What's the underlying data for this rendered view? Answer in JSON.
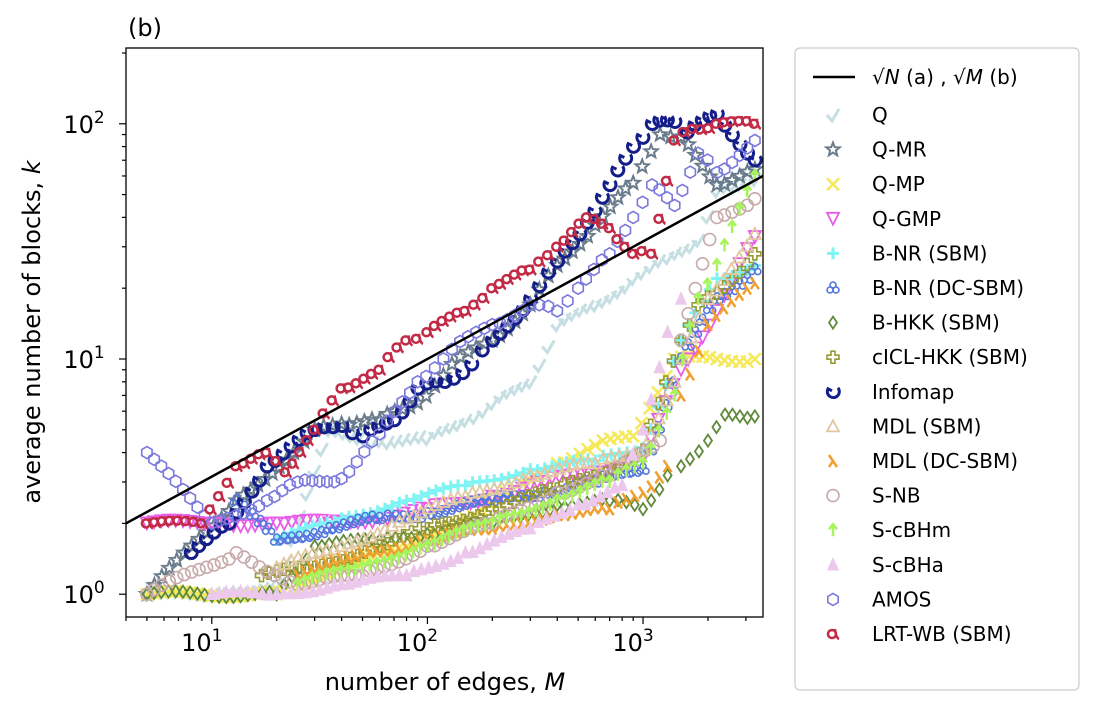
{
  "chart_data": {
    "type": "scatter",
    "panel_label": "(b)",
    "xlabel": "number of edges, ",
    "xlabel_var": "M",
    "ylabel": "average number of blocks, ",
    "ylabel_var": "k",
    "x_scale": "log",
    "y_scale": "log",
    "xlim": [
      4,
      3600
    ],
    "ylim": [
      0.8,
      210
    ],
    "x_ticks": [
      {
        "value": 10,
        "base": "10",
        "exp": "1"
      },
      {
        "value": 100,
        "base": "10",
        "exp": "2"
      },
      {
        "value": 1000,
        "base": "10",
        "exp": "3"
      }
    ],
    "y_ticks": [
      {
        "value": 1,
        "base": "10",
        "exp": "0"
      },
      {
        "value": 10,
        "base": "10",
        "exp": "1"
      },
      {
        "value": 100,
        "base": "10",
        "exp": "2"
      }
    ],
    "grid": false,
    "legend_position": "outside-right",
    "reference_line": {
      "label_part1": "√N",
      "label_part2": " (a) , ",
      "label_part3": "√M",
      "label_part4": " (b)",
      "x": [
        4,
        3600
      ],
      "y": [
        2.0,
        60
      ],
      "color": "#000000"
    },
    "series": [
      {
        "name": "Q",
        "color": "#c5dfe3",
        "marker": "check",
        "points": [
          [
            5,
            1
          ],
          [
            10,
            1
          ],
          [
            20,
            1.1
          ],
          [
            35,
            5
          ],
          [
            60,
            4.5
          ],
          [
            100,
            4.6
          ],
          [
            150,
            5.5
          ],
          [
            200,
            6.5
          ],
          [
            300,
            8
          ],
          [
            400,
            14
          ],
          [
            600,
            17
          ],
          [
            900,
            22
          ],
          [
            1300,
            27
          ],
          [
            1800,
            32
          ],
          [
            2200,
            52
          ],
          [
            3300,
            58
          ]
        ]
      },
      {
        "name": "Q-MR",
        "color": "#6a7c8c",
        "marker": "star",
        "points": [
          [
            5,
            1
          ],
          [
            13,
            2.5
          ],
          [
            24,
            4
          ],
          [
            30,
            5
          ],
          [
            40,
            5.3
          ],
          [
            60,
            5.5
          ],
          [
            90,
            6.5
          ],
          [
            130,
            9.5
          ],
          [
            200,
            12
          ],
          [
            300,
            17
          ],
          [
            400,
            25
          ],
          [
            600,
            37
          ],
          [
            900,
            56
          ],
          [
            1200,
            90
          ],
          [
            1500,
            88
          ],
          [
            2200,
            55
          ],
          [
            3300,
            64
          ]
        ]
      },
      {
        "name": "Q-MP",
        "color": "#f5e95a",
        "marker": "x",
        "points": [
          [
            5,
            1
          ],
          [
            20,
            1
          ],
          [
            40,
            1.3
          ],
          [
            80,
            1.6
          ],
          [
            150,
            2.1
          ],
          [
            250,
            2.8
          ],
          [
            400,
            3.6
          ],
          [
            600,
            4.3
          ],
          [
            900,
            4.7
          ],
          [
            1400,
            10
          ],
          [
            2200,
            10
          ],
          [
            3300,
            10
          ]
        ]
      },
      {
        "name": "Q-GMP",
        "color": "#e85ce8",
        "marker": "triangle-down",
        "points": [
          [
            5,
            2
          ],
          [
            10,
            2
          ],
          [
            20,
            2
          ],
          [
            35,
            2
          ],
          [
            60,
            2.1
          ],
          [
            100,
            2.3
          ],
          [
            200,
            2.6
          ],
          [
            350,
            3.0
          ],
          [
            600,
            3.3
          ],
          [
            1000,
            3.8
          ],
          [
            1500,
            9
          ],
          [
            2200,
            16
          ],
          [
            3300,
            33
          ]
        ]
      },
      {
        "name": "B-NR (SBM)",
        "color": "#7ff4f4",
        "marker": "plus",
        "points": [
          [
            20,
            1.7
          ],
          [
            40,
            2.1
          ],
          [
            80,
            2.5
          ],
          [
            150,
            2.9
          ],
          [
            300,
            3.4
          ],
          [
            600,
            3.7
          ],
          [
            1000,
            4.2
          ],
          [
            1500,
            12
          ],
          [
            2200,
            22
          ],
          [
            3300,
            25
          ]
        ]
      },
      {
        "name": "B-NR (DC-SBM)",
        "color": "#5577dd",
        "marker": "trefoil",
        "points": [
          [
            13,
            2.5
          ],
          [
            20,
            1.7
          ],
          [
            35,
            1.9
          ],
          [
            60,
            2.1
          ],
          [
            100,
            2.2
          ],
          [
            200,
            2.5
          ],
          [
            350,
            2.7
          ],
          [
            600,
            3.0
          ],
          [
            1000,
            3.4
          ],
          [
            1500,
            10
          ],
          [
            2200,
            18
          ],
          [
            3300,
            24
          ]
        ]
      },
      {
        "name": "B-HKK (SBM)",
        "color": "#5f8a3a",
        "marker": "diamond",
        "points": [
          [
            5,
            1
          ],
          [
            20,
            1
          ],
          [
            30,
            1.6
          ],
          [
            60,
            1.7
          ],
          [
            100,
            1.8
          ],
          [
            200,
            2.0
          ],
          [
            400,
            2.4
          ],
          [
            700,
            2.5
          ],
          [
            1000,
            2.3
          ],
          [
            1300,
            3.2
          ],
          [
            1500,
            3.5
          ],
          [
            2000,
            4.5
          ],
          [
            2400,
            5.8
          ],
          [
            3300,
            5.7
          ]
        ]
      },
      {
        "name": "cICL-HKK (SBM)",
        "color": "#999933",
        "marker": "plus-open",
        "points": [
          [
            17,
            1.2
          ],
          [
            30,
            1.3
          ],
          [
            60,
            1.6
          ],
          [
            100,
            1.9
          ],
          [
            200,
            2.3
          ],
          [
            400,
            2.8
          ],
          [
            700,
            3.4
          ],
          [
            1000,
            4.1
          ],
          [
            1500,
            12
          ],
          [
            1800,
            17
          ],
          [
            2200,
            19
          ],
          [
            3300,
            28
          ]
        ]
      },
      {
        "name": "Infomap",
        "color": "#141e8a",
        "marker": "spiral",
        "points": [
          [
            8,
            1.5
          ],
          [
            12,
            2.0
          ],
          [
            18,
            3.5
          ],
          [
            30,
            5
          ],
          [
            40,
            5.2
          ],
          [
            50,
            4.7
          ],
          [
            70,
            5.5
          ],
          [
            90,
            7.5
          ],
          [
            120,
            8.0
          ],
          [
            160,
            9.5
          ],
          [
            200,
            12
          ],
          [
            300,
            18
          ],
          [
            400,
            26
          ],
          [
            550,
            38
          ],
          [
            700,
            55
          ],
          [
            900,
            80
          ],
          [
            1100,
            100
          ],
          [
            1400,
            102
          ],
          [
            1600,
            92
          ],
          [
            2200,
            110
          ],
          [
            3300,
            70
          ]
        ]
      },
      {
        "name": "MDL (SBM)",
        "color": "#e0c8a0",
        "marker": "triangle-open",
        "points": [
          [
            20,
            1.3
          ],
          [
            40,
            1.6
          ],
          [
            80,
            2.1
          ],
          [
            150,
            2.6
          ],
          [
            300,
            3.2
          ],
          [
            600,
            3.6
          ],
          [
            1000,
            4.1
          ],
          [
            1400,
            8
          ],
          [
            2000,
            18
          ],
          [
            3300,
            34
          ]
        ]
      },
      {
        "name": "MDL (DC-SBM)",
        "color": "#f0a030",
        "marker": "lambda",
        "points": [
          [
            25,
            1.2
          ],
          [
            50,
            1.5
          ],
          [
            100,
            1.7
          ],
          [
            200,
            1.9
          ],
          [
            400,
            2.2
          ],
          [
            700,
            2.3
          ],
          [
            1000,
            2.7
          ],
          [
            1300,
            3.5
          ],
          [
            1500,
            7
          ],
          [
            2000,
            14
          ],
          [
            3300,
            21
          ]
        ]
      },
      {
        "name": "S-NB",
        "color": "#c8aaaa",
        "marker": "circle-open",
        "points": [
          [
            5,
            1
          ],
          [
            13,
            1.5
          ],
          [
            25,
            1.1
          ],
          [
            50,
            1.2
          ],
          [
            100,
            1.6
          ],
          [
            200,
            2.0
          ],
          [
            400,
            2.7
          ],
          [
            700,
            3.2
          ],
          [
            1200,
            4.5
          ],
          [
            1500,
            12
          ],
          [
            2200,
            40
          ],
          [
            3300,
            48
          ]
        ]
      },
      {
        "name": "S-cBHm",
        "color": "#a6f55a",
        "marker": "arrow",
        "points": [
          [
            25,
            1.1
          ],
          [
            50,
            1.3
          ],
          [
            100,
            1.6
          ],
          [
            200,
            2.0
          ],
          [
            400,
            2.5
          ],
          [
            700,
            3.0
          ],
          [
            1000,
            3.6
          ],
          [
            1400,
            7
          ],
          [
            1800,
            18
          ],
          [
            2200,
            25
          ],
          [
            3300,
            60
          ]
        ]
      },
      {
        "name": "S-cBHa",
        "color": "#ecc8ec",
        "marker": "triangle-solid",
        "points": [
          [
            10,
            1
          ],
          [
            20,
            1
          ],
          [
            40,
            1.1
          ],
          [
            80,
            1.2
          ],
          [
            150,
            1.5
          ],
          [
            300,
            1.9
          ],
          [
            500,
            2.4
          ],
          [
            800,
            2.9
          ],
          [
            1000,
            5
          ],
          [
            1300,
            13
          ],
          [
            1500,
            18
          ]
        ]
      },
      {
        "name": "AMOS",
        "color": "#7a78dc",
        "marker": "hexagon",
        "points": [
          [
            5,
            4
          ],
          [
            10,
            2
          ],
          [
            18,
            2.5
          ],
          [
            25,
            3
          ],
          [
            40,
            3.1
          ],
          [
            60,
            4.8
          ],
          [
            90,
            8
          ],
          [
            130,
            11
          ],
          [
            200,
            14
          ],
          [
            300,
            17
          ],
          [
            400,
            16
          ],
          [
            500,
            20
          ],
          [
            700,
            28
          ],
          [
            900,
            40
          ],
          [
            1100,
            55
          ],
          [
            1400,
            45
          ],
          [
            1800,
            75
          ],
          [
            2200,
            62
          ],
          [
            3300,
            85
          ]
        ]
      },
      {
        "name": "LRT-WB (SBM)",
        "color": "#c22a46",
        "marker": "alpha",
        "points": [
          [
            5,
            2
          ],
          [
            9,
            2
          ],
          [
            13,
            3.5
          ],
          [
            18,
            4
          ],
          [
            22,
            3.3
          ],
          [
            30,
            5
          ],
          [
            40,
            7.5
          ],
          [
            60,
            9.0
          ],
          [
            80,
            12
          ],
          [
            100,
            13
          ],
          [
            150,
            16
          ],
          [
            200,
            20
          ],
          [
            300,
            24
          ],
          [
            400,
            30
          ],
          [
            550,
            40
          ],
          [
            700,
            36
          ],
          [
            900,
            28
          ],
          [
            1100,
            28
          ],
          [
            1400,
            85
          ],
          [
            1700,
            95
          ],
          [
            2200,
            100
          ],
          [
            3300,
            100
          ]
        ]
      }
    ]
  }
}
